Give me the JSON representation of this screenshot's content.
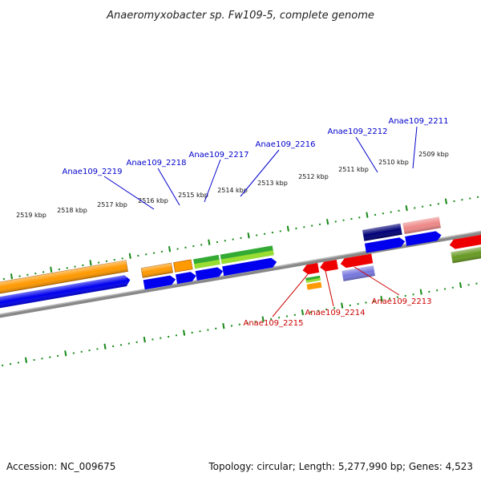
{
  "title": "Anaeromyxobacter sp. Fw109-5, complete genome",
  "footer": {
    "accession": "Accession: NC_009675",
    "topology": "Topology: circular; Length: 5,277,990 bp; Genes: 4,523"
  },
  "colors": {
    "background": "#ffffff",
    "tick_green": "#1a8a1a",
    "backbone": "#888888",
    "top_label": "#0000cc",
    "bottom_label": "#cc0000"
  },
  "ticks": [
    {
      "label": "2519 kbp"
    },
    {
      "label": "2518 kbp"
    },
    {
      "label": "2517 kbp"
    },
    {
      "label": "2516 kbp"
    },
    {
      "label": "2515 kbp"
    },
    {
      "label": "2514 kbp"
    },
    {
      "label": "2513 kbp"
    },
    {
      "label": "2512 kbp"
    },
    {
      "label": "2511 kbp"
    },
    {
      "label": "2510 kbp"
    },
    {
      "label": "2509 kbp"
    }
  ],
  "top_labels": [
    {
      "text": "Anae109_2219"
    },
    {
      "text": "Anae109_2218"
    },
    {
      "text": "Anae109_2217"
    },
    {
      "text": "Anae109_2216"
    },
    {
      "text": "Anae109_2212"
    },
    {
      "text": "Anae109_2211"
    }
  ],
  "bottom_labels": [
    {
      "text": "Anae109_2215"
    },
    {
      "text": "Anae109_2214"
    },
    {
      "text": "Anae109_2213"
    }
  ],
  "gene_colors": {
    "orange": "#ff9900",
    "blue": "#0000ee",
    "green": "#33aa33",
    "light_green": "#99dd33",
    "navy": "#000077",
    "pink": "#ee8888",
    "red": "#ee0000",
    "purple": "#7777dd",
    "olive": "#669922"
  }
}
